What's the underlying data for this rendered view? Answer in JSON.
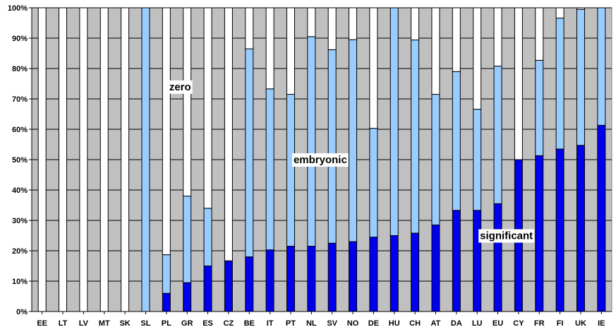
{
  "chart_data": {
    "type": "bar",
    "stacked": true,
    "percent_stacked": true,
    "categories": [
      "EE",
      "LT",
      "LV",
      "MT",
      "SK",
      "SL",
      "PL",
      "GR",
      "ES",
      "CZ",
      "BE",
      "IT",
      "PT",
      "NL",
      "SV",
      "NO",
      "DE",
      "HU",
      "CH",
      "AT",
      "DA",
      "LU",
      "EU",
      "CY",
      "FR",
      "FI",
      "UK",
      "IE"
    ],
    "series": [
      {
        "name": "significant",
        "color": "#0000ee",
        "values": [
          0,
          0,
          0,
          0,
          0,
          0,
          6,
          9.5,
          15,
          16.7,
          18,
          20.3,
          21.5,
          21.5,
          22.5,
          23,
          24.5,
          25,
          25.8,
          28.5,
          33.3,
          33.3,
          35.5,
          50,
          51.3,
          53.5,
          54.7,
          61.3
        ]
      },
      {
        "name": "embryonic",
        "color": "#99ccff",
        "values": [
          0,
          0,
          0,
          0,
          0,
          100,
          12.7,
          28.5,
          19,
          0,
          68.5,
          53,
          50,
          69,
          63.7,
          66.5,
          35.8,
          75,
          63.6,
          43,
          45.7,
          33.3,
          45.3,
          0,
          31.4,
          43.1,
          44.8,
          38.7
        ]
      },
      {
        "name": "zero",
        "color": "#ffffff",
        "values": [
          100,
          100,
          100,
          100,
          100,
          0,
          81.3,
          62,
          66,
          83.3,
          13.5,
          26.7,
          28.5,
          9.5,
          13.8,
          10.5,
          39.7,
          0,
          10.6,
          28.5,
          21,
          33.4,
          19.2,
          50,
          17.3,
          3.4,
          0.5,
          0
        ]
      }
    ],
    "yticks": [
      "0%",
      "10%",
      "20%",
      "30%",
      "40%",
      "50%",
      "60%",
      "70%",
      "80%",
      "90%",
      "100%"
    ],
    "ylim": [
      0,
      100
    ],
    "grid": true,
    "plot_background": "#c0c0c0",
    "annotations": [
      {
        "text": "zero",
        "category": "PL",
        "y": 74
      },
      {
        "text": "embryonic",
        "category": "PT",
        "y": 50
      },
      {
        "text": "significant",
        "category": "LU",
        "y": 25
      }
    ]
  }
}
